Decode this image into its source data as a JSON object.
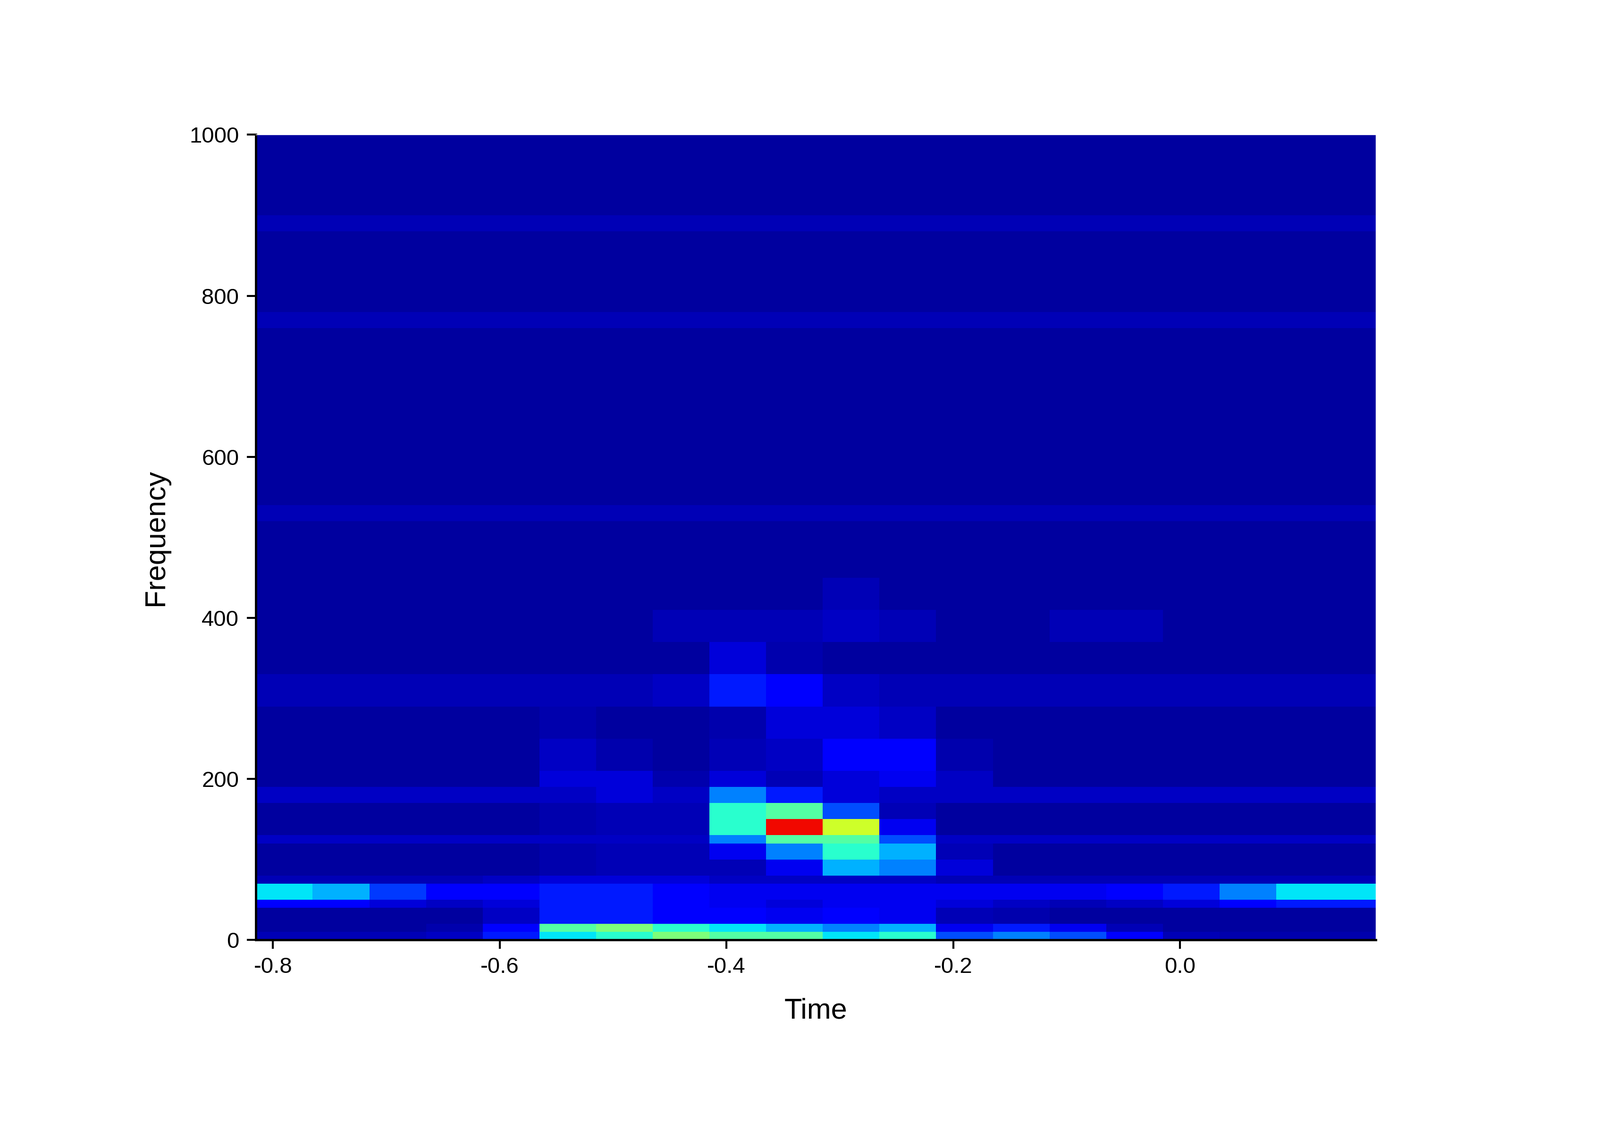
{
  "chart_data": {
    "type": "heatmap",
    "x_label": "Time",
    "y_label": "Frequency",
    "xlim": [
      -0.815,
      0.173
    ],
    "xticks": [
      -0.8,
      -0.6,
      -0.4,
      -0.2,
      0.0
    ],
    "ylim": [
      0,
      1000
    ],
    "yticks": [
      0,
      200,
      400,
      600,
      800,
      1000
    ],
    "color": "jet",
    "zlim": [
      0,
      100
    ],
    "x": [
      -0.815,
      -0.765,
      -0.715,
      -0.665,
      -0.615,
      -0.565,
      -0.515,
      -0.465,
      -0.415,
      -0.365,
      -0.315,
      -0.265,
      -0.215,
      -0.165,
      -0.115,
      -0.065,
      -0.015,
      0.035,
      0.085,
      0.135,
      0.185
    ],
    "y": [
      0,
      10,
      20,
      40,
      50,
      70,
      80,
      100,
      120,
      130,
      150,
      170,
      190,
      210,
      250,
      290,
      330,
      370,
      410,
      450,
      520,
      540,
      760,
      780,
      880,
      900,
      1000
    ],
    "z": [
      [
        5,
        5,
        5,
        6,
        15,
        35,
        40,
        50,
        45,
        45,
        35,
        40,
        20,
        25,
        20,
        12,
        5,
        4,
        4,
        4
      ],
      [
        3,
        3,
        3,
        4,
        12,
        45,
        50,
        40,
        35,
        30,
        25,
        30,
        10,
        15,
        10,
        5,
        3,
        3,
        3,
        3
      ],
      [
        3,
        3,
        3,
        3,
        6,
        15,
        15,
        12,
        12,
        10,
        12,
        10,
        5,
        4,
        3,
        3,
        3,
        3,
        3,
        3
      ],
      [
        12,
        12,
        8,
        6,
        8,
        15,
        15,
        12,
        10,
        8,
        10,
        10,
        8,
        6,
        5,
        6,
        8,
        12,
        15,
        15
      ],
      [
        35,
        30,
        18,
        12,
        12,
        15,
        15,
        12,
        10,
        10,
        10,
        10,
        10,
        10,
        10,
        12,
        15,
        25,
        35,
        35
      ],
      [
        5,
        5,
        5,
        5,
        6,
        8,
        8,
        8,
        6,
        6,
        6,
        6,
        5,
        5,
        5,
        5,
        5,
        5,
        5,
        5
      ],
      [
        3,
        3,
        3,
        3,
        3,
        4,
        5,
        5,
        5,
        10,
        30,
        25,
        8,
        3,
        3,
        3,
        3,
        3,
        3,
        3
      ],
      [
        3,
        3,
        3,
        3,
        3,
        4,
        5,
        5,
        10,
        25,
        40,
        30,
        5,
        3,
        3,
        3,
        3,
        3,
        3,
        3
      ],
      [
        6,
        6,
        6,
        6,
        6,
        6,
        6,
        6,
        25,
        45,
        45,
        20,
        6,
        6,
        6,
        6,
        6,
        6,
        6,
        6
      ],
      [
        3,
        3,
        3,
        3,
        3,
        4,
        5,
        5,
        40,
        90,
        60,
        10,
        3,
        3,
        3,
        3,
        3,
        3,
        3,
        3
      ],
      [
        3,
        3,
        3,
        3,
        3,
        4,
        5,
        5,
        40,
        45,
        20,
        5,
        3,
        3,
        3,
        3,
        3,
        3,
        3,
        3
      ],
      [
        6,
        6,
        6,
        6,
        6,
        6,
        8,
        6,
        25,
        15,
        8,
        6,
        6,
        6,
        6,
        6,
        6,
        6,
        6,
        6
      ],
      [
        3,
        3,
        3,
        3,
        3,
        8,
        8,
        4,
        8,
        5,
        8,
        10,
        6,
        3,
        3,
        3,
        3,
        3,
        3,
        3
      ],
      [
        3,
        3,
        3,
        3,
        3,
        6,
        4,
        3,
        5,
        6,
        12,
        12,
        4,
        3,
        3,
        3,
        3,
        3,
        3,
        3
      ],
      [
        3,
        3,
        3,
        3,
        3,
        4,
        3,
        3,
        4,
        8,
        8,
        6,
        3,
        3,
        3,
        3,
        3,
        3,
        3,
        3
      ],
      [
        5,
        5,
        5,
        5,
        5,
        5,
        5,
        6,
        15,
        12,
        6,
        5,
        5,
        5,
        5,
        5,
        5,
        5,
        5,
        5
      ],
      [
        3,
        3,
        3,
        3,
        3,
        3,
        3,
        3,
        8,
        4,
        3,
        3,
        3,
        3,
        3,
        3,
        3,
        3,
        3,
        3
      ],
      [
        3,
        3,
        3,
        3,
        3,
        3,
        3,
        5,
        5,
        5,
        6,
        5,
        3,
        3,
        5,
        5,
        3,
        3,
        3,
        3
      ],
      [
        3,
        3,
        3,
        3,
        3,
        3,
        3,
        3,
        3,
        3,
        5,
        3,
        3,
        3,
        3,
        3,
        3,
        3,
        3,
        3
      ],
      [
        3,
        3,
        3,
        3,
        3,
        3,
        3,
        3,
        3,
        3,
        3,
        3,
        3,
        3,
        3,
        3,
        3,
        3,
        3,
        3
      ],
      [
        5,
        5,
        5,
        5,
        5,
        5,
        5,
        5,
        5,
        5,
        5,
        5,
        5,
        5,
        5,
        5,
        5,
        5,
        5,
        5
      ],
      [
        3,
        3,
        3,
        3,
        3,
        3,
        3,
        3,
        3,
        3,
        3,
        3,
        3,
        3,
        3,
        3,
        3,
        3,
        3,
        3
      ],
      [
        5,
        5,
        5,
        5,
        5,
        5,
        5,
        5,
        5,
        5,
        5,
        5,
        5,
        5,
        5,
        5,
        5,
        5,
        5,
        5
      ],
      [
        3,
        3,
        3,
        3,
        3,
        3,
        3,
        3,
        3,
        3,
        3,
        3,
        3,
        3,
        3,
        3,
        3,
        3,
        3,
        3
      ],
      [
        5,
        5,
        5,
        5,
        5,
        5,
        5,
        5,
        5,
        5,
        5,
        5,
        5,
        5,
        5,
        5,
        5,
        5,
        5,
        5
      ],
      [
        3,
        3,
        3,
        3,
        3,
        3,
        3,
        3,
        3,
        3,
        3,
        3,
        3,
        3,
        3,
        3,
        3,
        3,
        3,
        3
      ]
    ]
  }
}
